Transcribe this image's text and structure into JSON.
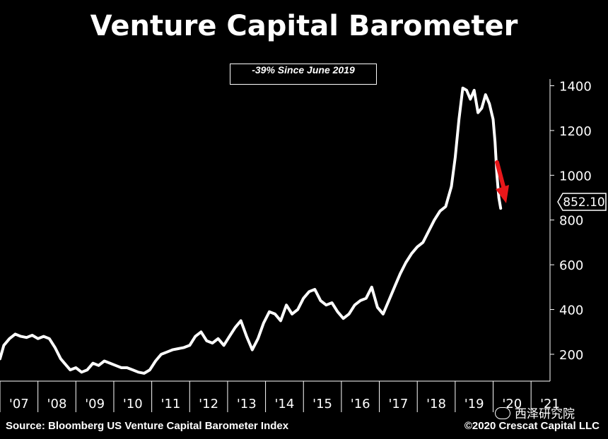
{
  "title": "Venture Capital Barometer",
  "annotation": "-39% Since June 2019",
  "source": "Source: Bloomberg US Venture Capital Barometer Index",
  "copyright": "©2020 Crescat Capital LLC",
  "watermark": "西泽研究院",
  "colors": {
    "background": "#000000",
    "line": "#ffffff",
    "arrow": "#e8171a"
  },
  "chart_data": {
    "type": "line",
    "xlabel": "",
    "ylabel": "",
    "ylim": [
      80,
      1430
    ],
    "xlim": [
      2007.0,
      2021.5
    ],
    "y_ticks": [
      200,
      400,
      600,
      800,
      1000,
      1200,
      1400
    ],
    "x_tick_labels": [
      "'07",
      "'08",
      "'09",
      "'10",
      "'11",
      "'12",
      "'13",
      "'14",
      "'15",
      "'16",
      "'17",
      "'18",
      "'19",
      "'20",
      "'21"
    ],
    "last_value_label": "852.10",
    "series": [
      {
        "x": [
          2007.0,
          2007.1,
          2007.25,
          2007.4,
          2007.55,
          2007.7,
          2007.85,
          2008.0,
          2008.15,
          2008.3,
          2008.45,
          2008.6,
          2008.75,
          2008.85,
          2009.0,
          2009.15,
          2009.3,
          2009.45,
          2009.6,
          2009.75,
          2009.9,
          2010.05,
          2010.2,
          2010.35,
          2010.5,
          2010.65,
          2010.8,
          2010.95,
          2011.1,
          2011.25,
          2011.4,
          2011.55,
          2011.7,
          2011.85,
          2012.0,
          2012.15,
          2012.3,
          2012.45,
          2012.6,
          2012.75,
          2012.9,
          2013.05,
          2013.2,
          2013.35,
          2013.5,
          2013.65,
          2013.8,
          2013.95,
          2014.1,
          2014.25,
          2014.4,
          2014.55,
          2014.7,
          2014.85,
          2015.0,
          2015.15,
          2015.3,
          2015.45,
          2015.6,
          2015.75,
          2015.9,
          2016.05,
          2016.2,
          2016.35,
          2016.5,
          2016.65,
          2016.8,
          2016.95,
          2017.1,
          2017.25,
          2017.4,
          2017.55,
          2017.7,
          2017.85,
          2018.0,
          2018.15,
          2018.3,
          2018.45,
          2018.6,
          2018.75,
          2018.9,
          2019.0,
          2019.1,
          2019.2,
          2019.3,
          2019.4,
          2019.5,
          2019.6,
          2019.7,
          2019.8,
          2019.9,
          2020.0,
          2020.05,
          2020.1,
          2020.15,
          2020.2
        ],
        "values": [
          180,
          240,
          270,
          290,
          280,
          275,
          285,
          270,
          280,
          270,
          230,
          180,
          150,
          130,
          140,
          120,
          130,
          160,
          150,
          170,
          160,
          150,
          140,
          140,
          130,
          120,
          115,
          130,
          170,
          200,
          210,
          220,
          225,
          230,
          240,
          280,
          300,
          260,
          250,
          270,
          240,
          280,
          320,
          350,
          280,
          220,
          270,
          340,
          390,
          380,
          350,
          420,
          380,
          400,
          450,
          480,
          490,
          440,
          420,
          430,
          390,
          360,
          380,
          420,
          440,
          450,
          500,
          410,
          380,
          440,
          500,
          560,
          610,
          650,
          680,
          700,
          750,
          800,
          840,
          860,
          950,
          1080,
          1250,
          1390,
          1380,
          1340,
          1380,
          1280,
          1300,
          1360,
          1320,
          1250,
          1150,
          1000,
          900,
          852.1
        ]
      }
    ]
  }
}
